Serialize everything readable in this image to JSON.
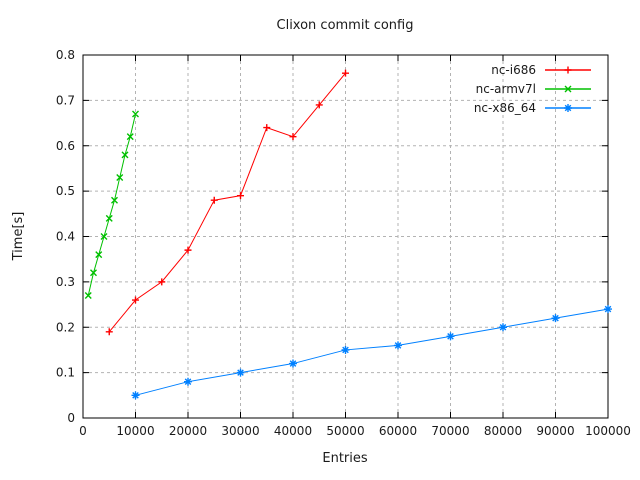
{
  "chart_data": {
    "type": "line",
    "title": "Clixon commit config",
    "xlabel": "Entries",
    "ylabel": "Time[s]",
    "xlim": [
      0,
      100000
    ],
    "ylim": [
      0,
      0.8
    ],
    "grid": true,
    "legend_position": "top-right-inside",
    "x_ticks": [
      {
        "value": 0,
        "label": "0"
      },
      {
        "value": 10000,
        "label": "10000"
      },
      {
        "value": 20000,
        "label": "20000"
      },
      {
        "value": 30000,
        "label": "30000"
      },
      {
        "value": 40000,
        "label": "40000"
      },
      {
        "value": 50000,
        "label": "50000"
      },
      {
        "value": 60000,
        "label": "60000"
      },
      {
        "value": 70000,
        "label": "70000"
      },
      {
        "value": 80000,
        "label": "80000"
      },
      {
        "value": 90000,
        "label": "90000"
      },
      {
        "value": 100000,
        "label": "100000"
      }
    ],
    "y_ticks": [
      {
        "value": 0,
        "label": "0"
      },
      {
        "value": 0.1,
        "label": "0.1"
      },
      {
        "value": 0.2,
        "label": "0.2"
      },
      {
        "value": 0.3,
        "label": "0.3"
      },
      {
        "value": 0.4,
        "label": "0.4"
      },
      {
        "value": 0.5,
        "label": "0.5"
      },
      {
        "value": 0.6,
        "label": "0.6"
      },
      {
        "value": 0.7,
        "label": "0.7"
      },
      {
        "value": 0.8,
        "label": "0.8"
      }
    ],
    "colors": {
      "grid": "#b3b3b3",
      "axis": "#000000",
      "text": "#1a1a1a"
    },
    "series": [
      {
        "name": "nc-i686",
        "color": "#ff0000",
        "marker": "plus",
        "x": [
          5000,
          10000,
          15000,
          20000,
          25000,
          30000,
          35000,
          40000,
          45000,
          50000
        ],
        "y": [
          0.19,
          0.26,
          0.3,
          0.37,
          0.48,
          0.49,
          0.64,
          0.62,
          0.69,
          0.76
        ]
      },
      {
        "name": "nc-armv7l",
        "color": "#00c000",
        "marker": "cross",
        "x": [
          1000,
          2000,
          3000,
          4000,
          5000,
          6000,
          7000,
          8000,
          9000,
          10000
        ],
        "y": [
          0.27,
          0.32,
          0.36,
          0.4,
          0.44,
          0.48,
          0.53,
          0.58,
          0.62,
          0.67
        ]
      },
      {
        "name": "nc-x86_64",
        "color": "#0080ff",
        "marker": "asterisk",
        "x": [
          10000,
          20000,
          30000,
          40000,
          50000,
          60000,
          70000,
          80000,
          90000,
          100000
        ],
        "y": [
          0.05,
          0.08,
          0.1,
          0.12,
          0.15,
          0.16,
          0.18,
          0.2,
          0.22,
          0.24
        ]
      }
    ]
  }
}
